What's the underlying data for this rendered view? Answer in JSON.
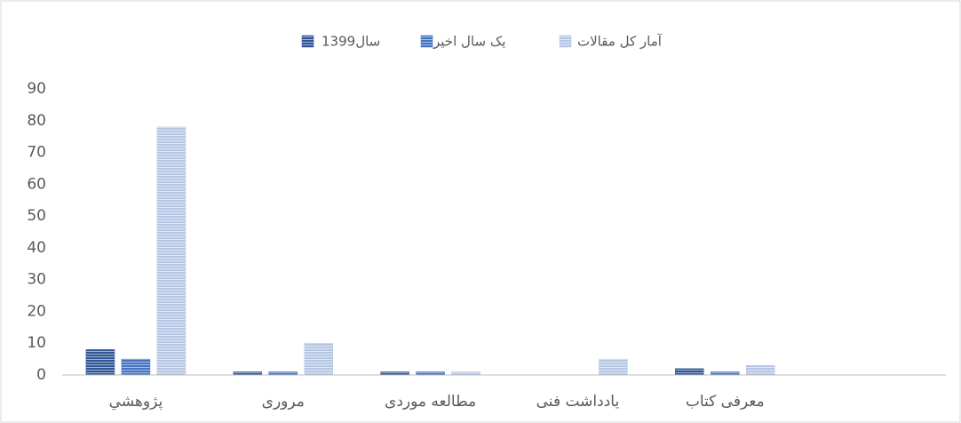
{
  "chart_data": {
    "type": "bar",
    "categories": [
      "پژوهشي",
      "مروری",
      "مطالعه موردی",
      "یادداشت فنی",
      "معرفی کتاب",
      null
    ],
    "series": [
      {
        "name": "سال1399",
        "color": "#2f5597",
        "values": [
          8,
          1,
          1,
          0,
          2,
          null
        ]
      },
      {
        "name": "یک سال اخیر",
        "color": "#4472c4",
        "values": [
          5,
          1,
          1,
          0,
          1,
          null
        ]
      },
      {
        "name": "آمار کل مقالات",
        "color": "#b4c7e7",
        "values": [
          78,
          10,
          1,
          5,
          3,
          null
        ]
      }
    ],
    "ylim": [
      0,
      90
    ],
    "yticks": [
      0,
      10,
      20,
      30,
      40,
      50,
      60,
      70,
      80,
      90
    ],
    "grid": false,
    "legend": "top"
  }
}
